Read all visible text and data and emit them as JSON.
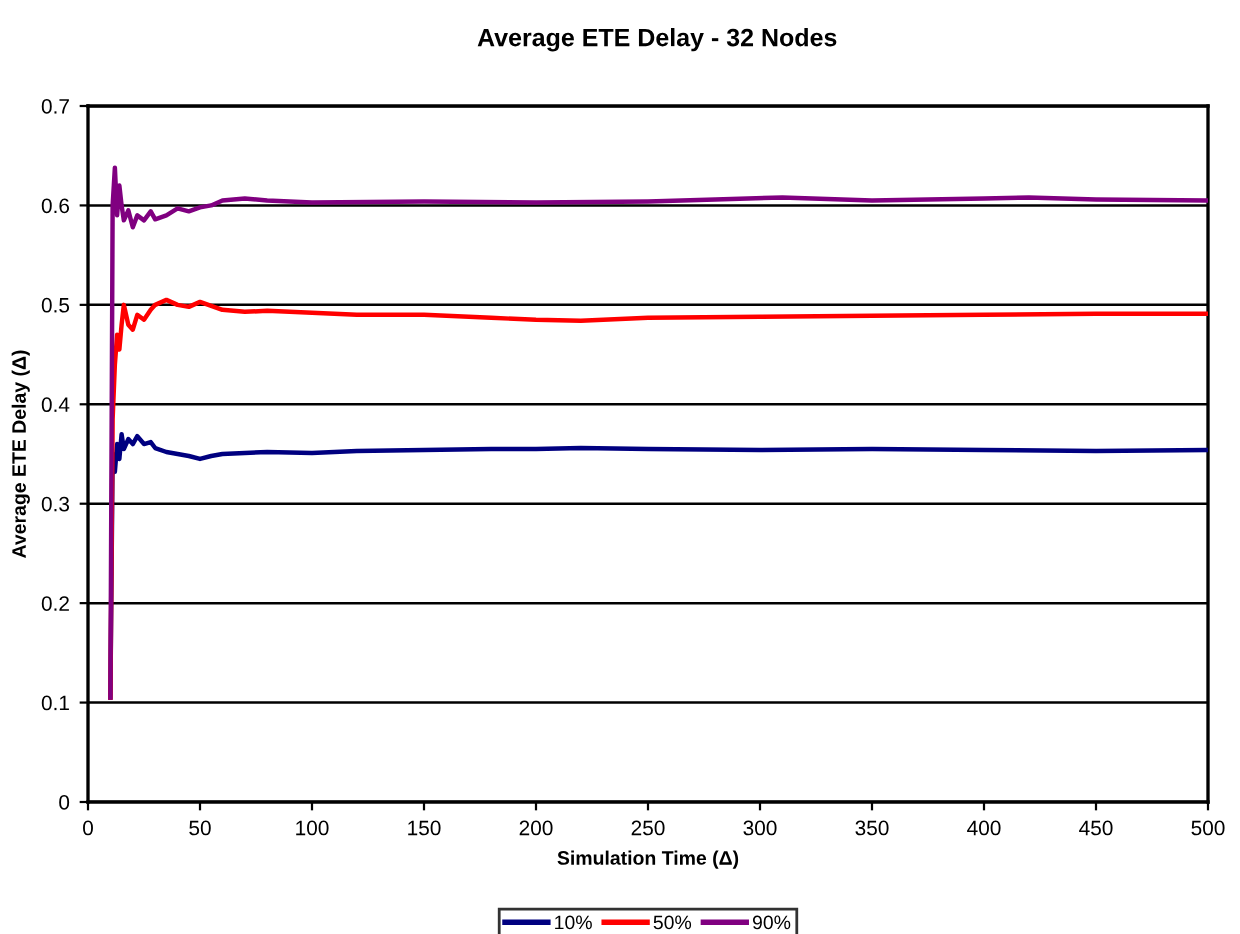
{
  "chart_data": {
    "type": "line",
    "title": "Average ETE Delay - 32 Nodes",
    "xlabel": "Simulation Time (Δ)",
    "ylabel": "Average ETE Delay (Δ)",
    "xlim": [
      0,
      500
    ],
    "ylim": [
      0,
      0.7
    ],
    "xticks": [
      0,
      50,
      100,
      150,
      200,
      250,
      300,
      350,
      400,
      450,
      500
    ],
    "yticks": [
      0,
      0.1,
      0.2,
      0.3,
      0.4,
      0.5,
      0.6,
      0.7
    ],
    "grid": "y",
    "legend": "bottom",
    "marker": "none",
    "line_style": "solid",
    "series": [
      {
        "name": "10%",
        "color": "#000080",
        "x": [
          10,
          11,
          12,
          13,
          14,
          15,
          16,
          18,
          20,
          22,
          25,
          28,
          30,
          35,
          40,
          45,
          50,
          55,
          60,
          70,
          80,
          100,
          120,
          150,
          180,
          200,
          220,
          250,
          300,
          350,
          400,
          450,
          500
        ],
        "values": [
          0.105,
          0.35,
          0.332,
          0.36,
          0.345,
          0.37,
          0.355,
          0.365,
          0.36,
          0.368,
          0.36,
          0.362,
          0.356,
          0.352,
          0.35,
          0.348,
          0.345,
          0.348,
          0.35,
          0.351,
          0.352,
          0.351,
          0.353,
          0.354,
          0.355,
          0.355,
          0.356,
          0.355,
          0.354,
          0.355,
          0.354,
          0.353,
          0.354
        ]
      },
      {
        "name": "50%",
        "color": "#ff0000",
        "x": [
          10,
          11,
          12,
          13,
          14,
          15,
          16,
          18,
          20,
          22,
          25,
          28,
          30,
          35,
          40,
          45,
          50,
          60,
          70,
          80,
          100,
          120,
          150,
          180,
          200,
          220,
          250,
          300,
          350,
          400,
          450,
          500
        ],
        "values": [
          0.105,
          0.385,
          0.44,
          0.47,
          0.455,
          0.48,
          0.5,
          0.48,
          0.475,
          0.49,
          0.485,
          0.495,
          0.5,
          0.505,
          0.5,
          0.498,
          0.503,
          0.495,
          0.493,
          0.494,
          0.492,
          0.49,
          0.49,
          0.487,
          0.485,
          0.484,
          0.487,
          0.488,
          0.489,
          0.49,
          0.491,
          0.491
        ]
      },
      {
        "name": "90%",
        "color": "#800080",
        "x": [
          10,
          11,
          12,
          13,
          14,
          15,
          16,
          18,
          20,
          22,
          25,
          28,
          30,
          35,
          40,
          45,
          50,
          55,
          60,
          70,
          80,
          100,
          150,
          200,
          250,
          280,
          310,
          350,
          400,
          420,
          450,
          500
        ],
        "values": [
          0.105,
          0.6,
          0.638,
          0.59,
          0.62,
          0.6,
          0.585,
          0.595,
          0.578,
          0.59,
          0.585,
          0.594,
          0.586,
          0.59,
          0.597,
          0.594,
          0.598,
          0.6,
          0.605,
          0.607,
          0.605,
          0.603,
          0.604,
          0.603,
          0.604,
          0.606,
          0.608,
          0.605,
          0.607,
          0.608,
          0.606,
          0.605
        ]
      }
    ]
  }
}
